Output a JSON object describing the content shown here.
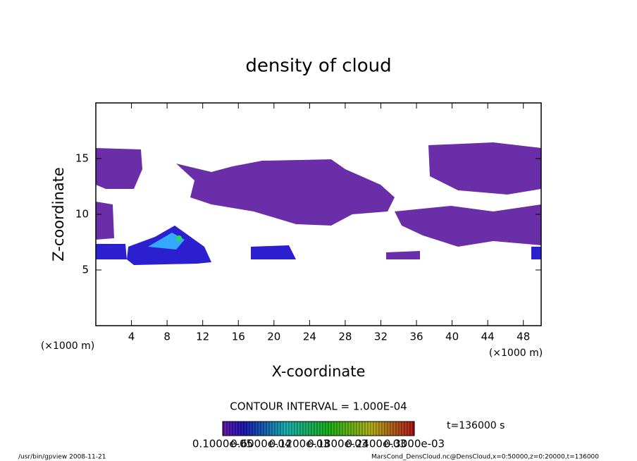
{
  "chart_data": {
    "type": "contour",
    "title": "density of cloud",
    "x_label": "X-coordinate",
    "y_label": "Z-coordinate",
    "y_unit": "(×1000 m)",
    "x_unit": "(×1000 m)",
    "xlim": [
      0,
      50
    ],
    "xticks": [
      4,
      8,
      12,
      16,
      20,
      24,
      28,
      32,
      36,
      40,
      44,
      48
    ],
    "ylim": [
      0,
      20
    ],
    "yticks": [
      5,
      10,
      15
    ],
    "contour_interval": "CONTOUR INTERVAL = 1.000E-04",
    "time": "t=136000 s",
    "colorbar_labels": [
      "0.1000e-05",
      "0.6000e-04",
      "0.1200e-03",
      "0.1800e-03",
      "0.2400e-03",
      "0.3000e-03"
    ],
    "footer_left": "/usr/bin/gpview   2008-11-21",
    "footer_right": "MarsCond_DensCloud.nc@DensCloud,x=0:50000,z=0:20000,t=136000"
  }
}
